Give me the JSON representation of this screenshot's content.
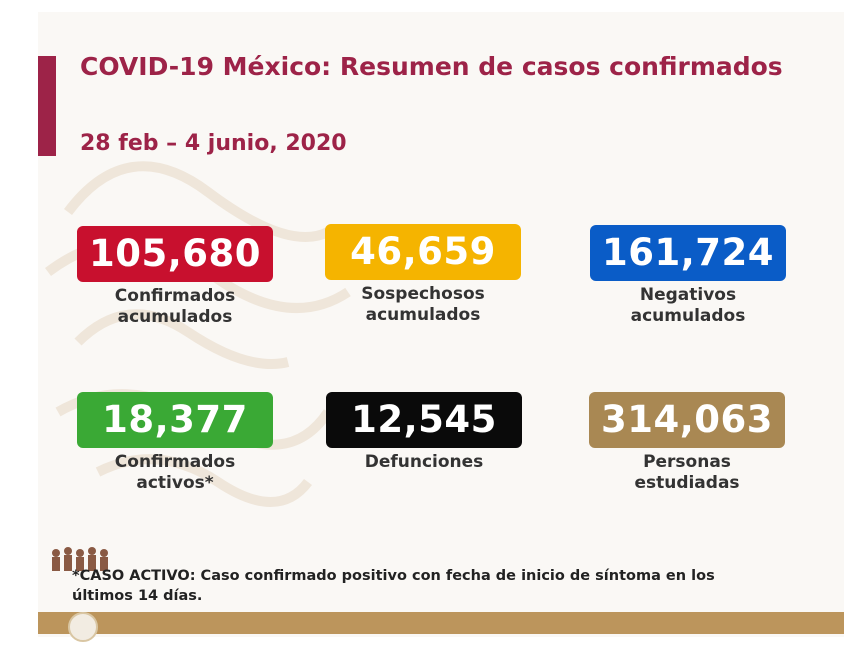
{
  "title": "COVID-19 México: Resumen de casos confirmados",
  "date_range": "28 feb – 4 junio, 2020",
  "stats": [
    {
      "value": "105,680",
      "label_line1": "Confirmados",
      "label_line2": "acumulados",
      "color": "#c8102e"
    },
    {
      "value": "46,659",
      "label_line1": "Sospechosos",
      "label_line2": "acumulados",
      "color": "#f5b400"
    },
    {
      "value": "161,724",
      "label_line1": "Negativos",
      "label_line2": "acumulados",
      "color": "#0a5cc7"
    },
    {
      "value": "18,377",
      "label_line1": "Confirmados",
      "label_line2": "activos*",
      "color": "#3aa935"
    },
    {
      "value": "12,545",
      "label_line1": "Defunciones",
      "label_line2": "",
      "color": "#0a0a0a"
    },
    {
      "value": "314,063",
      "label_line1": "Personas",
      "label_line2": "estudiadas",
      "color": "#a98853"
    }
  ],
  "footnote": {
    "line1": "*CASO ACTIVO: Caso confirmado positivo con fecha de inicio de síntoma en los",
    "line2": "últimos 14 días."
  },
  "colors": {
    "accent": "#9d2348",
    "band": "#bc955c"
  }
}
